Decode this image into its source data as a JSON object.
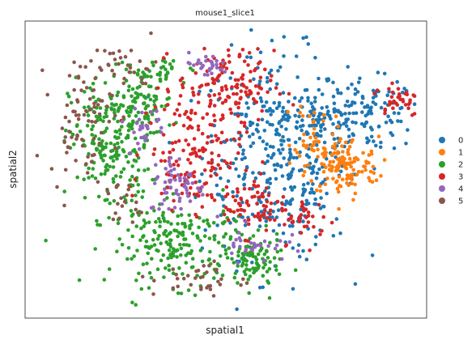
{
  "chart_data": {
    "type": "scatter",
    "title": "mouse1_slice1",
    "xlabel": "spatial1",
    "ylabel": "spatial2",
    "x_ticks": [],
    "y_ticks": [],
    "grid": false,
    "legend_placement": "right",
    "xlim": [
      0,
      100
    ],
    "ylim": [
      0,
      100
    ],
    "series": [
      {
        "name": "0",
        "color": "#1f77b4",
        "regions": [
          {
            "center": [
              62,
              55
            ],
            "spread": [
              9,
              17
            ],
            "count": 340
          },
          {
            "center": [
              74,
              68
            ],
            "spread": [
              4,
              6
            ],
            "count": 55
          },
          {
            "center": [
              86,
              68
            ],
            "spread": [
              6,
              6
            ],
            "count": 110
          },
          {
            "center": [
              69,
              42
            ],
            "spread": [
              4,
              8
            ],
            "count": 50
          }
        ]
      },
      {
        "name": "1",
        "color": "#ff7f0e",
        "regions": [
          {
            "center": [
              79,
              51
            ],
            "spread": [
              4.5,
              5
            ],
            "count": 140
          },
          {
            "center": [
              72,
              64
            ],
            "spread": [
              2.5,
              5
            ],
            "count": 35
          }
        ]
      },
      {
        "name": "2",
        "color": "#2ca02c",
        "regions": [
          {
            "center": [
              21,
              58
            ],
            "spread": [
              5,
              12
            ],
            "count": 220
          },
          {
            "center": [
              29,
              72
            ],
            "spread": [
              4,
              6
            ],
            "count": 90
          },
          {
            "center": [
              39,
              25
            ],
            "spread": [
              9,
              7
            ],
            "count": 220
          },
          {
            "center": [
              57,
              18
            ],
            "spread": [
              3.5,
              4.5
            ],
            "count": 80
          },
          {
            "center": [
              35,
              84
            ],
            "spread": [
              3,
              3
            ],
            "count": 25
          }
        ]
      },
      {
        "name": "3",
        "color": "#d62728",
        "regions": [
          {
            "center": [
              42,
              55
            ],
            "spread": [
              6,
              9
            ],
            "count": 150
          },
          {
            "center": [
              50,
              78
            ],
            "spread": [
              6,
              6
            ],
            "count": 130
          },
          {
            "center": [
              57,
              38
            ],
            "spread": [
              4,
              5
            ],
            "count": 70
          },
          {
            "center": [
              93,
              74
            ],
            "spread": [
              3,
              3
            ],
            "count": 35
          },
          {
            "center": [
              70,
              33
            ],
            "spread": [
              3,
              4
            ],
            "count": 35
          }
        ]
      },
      {
        "name": "4",
        "color": "#9467bd",
        "regions": [
          {
            "center": [
              38,
              45
            ],
            "spread": [
              3.5,
              5
            ],
            "count": 60
          },
          {
            "center": [
              57,
              25
            ],
            "spread": [
              4,
              3
            ],
            "count": 30
          },
          {
            "center": [
              30,
              65
            ],
            "spread": [
              2.5,
              3
            ],
            "count": 25
          },
          {
            "center": [
              45,
              85
            ],
            "spread": [
              3,
              2
            ],
            "count": 30
          }
        ]
      },
      {
        "name": "5",
        "color": "#8c564b",
        "regions": [
          {
            "center": [
              14,
              68
            ],
            "spread": [
              4,
              10
            ],
            "count": 75
          },
          {
            "center": [
              25,
              85
            ],
            "spread": [
              4,
              4
            ],
            "count": 30
          },
          {
            "center": [
              44,
              13
            ],
            "spread": [
              6,
              3
            ],
            "count": 35
          },
          {
            "center": [
              24,
              38
            ],
            "spread": [
              2,
              4
            ],
            "count": 20
          }
        ]
      }
    ]
  },
  "legend": {
    "entries": [
      "0",
      "1",
      "2",
      "3",
      "4",
      "5"
    ]
  }
}
